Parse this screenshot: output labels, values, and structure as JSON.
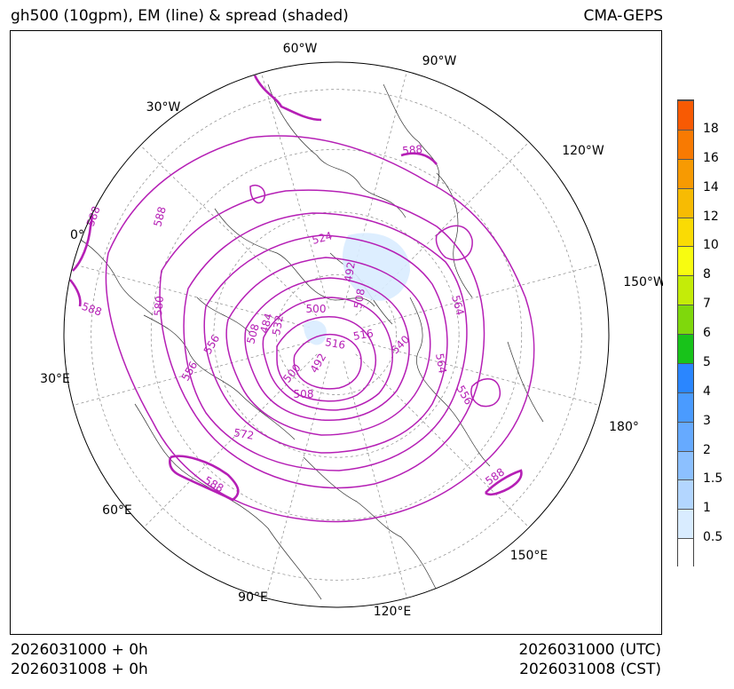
{
  "header": {
    "title_left": "gh500 (10gpm), EM (line) & spread (shaded)",
    "title_right": "CMA-GEPS"
  },
  "footer": {
    "left_line1": "2026031000 + 0h",
    "left_line2": "2026031008 + 0h",
    "right_line1": "2026031000 (UTC)",
    "right_line2": "2026031008 (CST)"
  },
  "map": {
    "projection": "north polar stereographic",
    "longitude_labels": [
      "60°W",
      "90°W",
      "30°W",
      "120°W",
      "0°",
      "150°W",
      "30°E",
      "180°",
      "60°E",
      "150°E",
      "90°E",
      "120°E"
    ],
    "contour_labels": [
      "588",
      "588",
      "588",
      "588",
      "588",
      "588",
      "580",
      "572",
      "564",
      "564",
      "556",
      "556",
      "556",
      "540",
      "532",
      "524",
      "516",
      "516",
      "508",
      "508",
      "508",
      "500",
      "500",
      "492",
      "492",
      "484"
    ],
    "contour_color": "#b51fb5",
    "coast_color": "#333333",
    "graticule_color": "#888888"
  },
  "colorbar": {
    "levels": [
      "0.5",
      "1",
      "1.5",
      "2",
      "3",
      "4",
      "5",
      "6",
      "7",
      "8",
      "10",
      "12",
      "14",
      "16",
      "18"
    ],
    "colors": [
      "#ffffff",
      "#d9ecff",
      "#b3d6ff",
      "#8cc0ff",
      "#66aaff",
      "#4a9bff",
      "#2a86ff",
      "#18c31a",
      "#7fd80c",
      "#c4ec08",
      "#f8fc10",
      "#fadb04",
      "#f7bb03",
      "#f79a02",
      "#f87a02",
      "#f85a03"
    ]
  }
}
